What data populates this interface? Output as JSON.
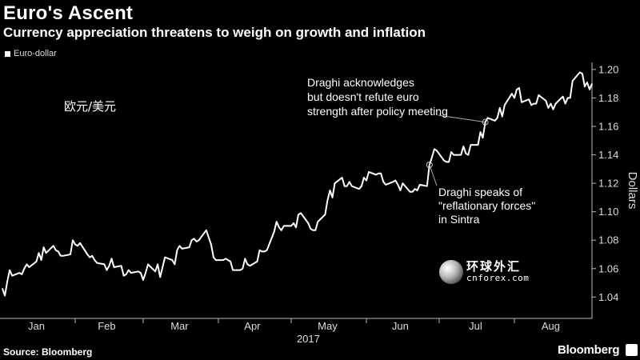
{
  "header": {
    "title": "Euro's Ascent",
    "subtitle": "Currency appreciation threatens to weigh on growth and inflation"
  },
  "overlay_text": "欧元/美元",
  "watermark": {
    "chinese": "环球外汇",
    "url": "cnforex.com"
  },
  "footer": {
    "source": "Source: Bloomberg",
    "brand": "Bloomberg"
  },
  "colors": {
    "background": "#000000",
    "line": "#ffffff",
    "axis": "#bbbbbb"
  },
  "chart_data": {
    "type": "line",
    "title": "Euro's Ascent",
    "subtitle": "Currency appreciation threatens to weigh on growth and inflation",
    "xlabel": "2017",
    "ylabel": "Dollars",
    "y_axis_position": "right",
    "ylim": [
      1.025,
      1.205
    ],
    "yticks": [
      1.04,
      1.06,
      1.08,
      1.1,
      1.12,
      1.14,
      1.16,
      1.18,
      1.2
    ],
    "ytick_labels": [
      "1.04",
      "1.06",
      "1.08",
      "1.10",
      "1.12",
      "1.14",
      "1.16",
      "1.18",
      "1.20"
    ],
    "xlim": [
      "2017-01-01",
      "2017-09-02"
    ],
    "month_labels": [
      {
        "label": "Jan",
        "date": "2017-01-16"
      },
      {
        "label": "Feb",
        "date": "2017-02-14"
      },
      {
        "label": "Mar",
        "date": "2017-03-16"
      },
      {
        "label": "Apr",
        "date": "2017-04-15"
      },
      {
        "label": "May",
        "date": "2017-05-16"
      },
      {
        "label": "Jun",
        "date": "2017-06-15"
      },
      {
        "label": "Jul",
        "date": "2017-07-16"
      },
      {
        "label": "Aug",
        "date": "2017-08-16"
      }
    ],
    "month_boundaries": [
      "2017-02-01",
      "2017-03-01",
      "2017-04-01",
      "2017-05-01",
      "2017-06-01",
      "2017-07-01",
      "2017-08-01"
    ],
    "grid": false,
    "legend": "top-left",
    "series": [
      {
        "name": "Euro-dollar",
        "points": [
          [
            "2017-01-02",
            1.046
          ],
          [
            "2017-01-03",
            1.041
          ],
          [
            "2017-01-04",
            1.051
          ],
          [
            "2017-01-05",
            1.059
          ],
          [
            "2017-01-06",
            1.055
          ],
          [
            "2017-01-09",
            1.057
          ],
          [
            "2017-01-10",
            1.056
          ],
          [
            "2017-01-11",
            1.06
          ],
          [
            "2017-01-12",
            1.063
          ],
          [
            "2017-01-13",
            1.061
          ],
          [
            "2017-01-16",
            1.065
          ],
          [
            "2017-01-17",
            1.071
          ],
          [
            "2017-01-18",
            1.066
          ],
          [
            "2017-01-19",
            1.075
          ],
          [
            "2017-01-20",
            1.071
          ],
          [
            "2017-01-23",
            1.076
          ],
          [
            "2017-01-24",
            1.073
          ],
          [
            "2017-01-25",
            1.072
          ],
          [
            "2017-01-26",
            1.069
          ],
          [
            "2017-01-27",
            1.069
          ],
          [
            "2017-01-30",
            1.07
          ],
          [
            "2017-01-31",
            1.08
          ],
          [
            "2017-02-01",
            1.077
          ],
          [
            "2017-02-02",
            1.076
          ],
          [
            "2017-02-03",
            1.078
          ],
          [
            "2017-02-06",
            1.07
          ],
          [
            "2017-02-07",
            1.068
          ],
          [
            "2017-02-08",
            1.069
          ],
          [
            "2017-02-09",
            1.066
          ],
          [
            "2017-02-10",
            1.064
          ],
          [
            "2017-02-13",
            1.063
          ],
          [
            "2017-02-14",
            1.059
          ],
          [
            "2017-02-15",
            1.062
          ],
          [
            "2017-02-16",
            1.067
          ],
          [
            "2017-02-17",
            1.061
          ],
          [
            "2017-02-20",
            1.062
          ],
          [
            "2017-02-21",
            1.055
          ],
          [
            "2017-02-22",
            1.056
          ],
          [
            "2017-02-23",
            1.059
          ],
          [
            "2017-02-24",
            1.057
          ],
          [
            "2017-02-27",
            1.058
          ],
          [
            "2017-02-28",
            1.057
          ],
          [
            "2017-03-01",
            1.052
          ],
          [
            "2017-03-02",
            1.057
          ],
          [
            "2017-03-03",
            1.063
          ],
          [
            "2017-03-06",
            1.058
          ],
          [
            "2017-03-07",
            1.063
          ],
          [
            "2017-03-08",
            1.054
          ],
          [
            "2017-03-09",
            1.061
          ],
          [
            "2017-03-10",
            1.068
          ],
          [
            "2017-03-13",
            1.066
          ],
          [
            "2017-03-14",
            1.063
          ],
          [
            "2017-03-15",
            1.073
          ],
          [
            "2017-03-16",
            1.076
          ],
          [
            "2017-03-17",
            1.074
          ],
          [
            "2017-03-20",
            1.075
          ],
          [
            "2017-03-21",
            1.08
          ],
          [
            "2017-03-22",
            1.081
          ],
          [
            "2017-03-23",
            1.079
          ],
          [
            "2017-03-24",
            1.08
          ],
          [
            "2017-03-27",
            1.087
          ],
          [
            "2017-03-28",
            1.082
          ],
          [
            "2017-03-29",
            1.077
          ],
          [
            "2017-03-30",
            1.068
          ],
          [
            "2017-03-31",
            1.066
          ],
          [
            "2017-04-03",
            1.066
          ],
          [
            "2017-04-04",
            1.067
          ],
          [
            "2017-04-05",
            1.066
          ],
          [
            "2017-04-06",
            1.065
          ],
          [
            "2017-04-07",
            1.059
          ],
          [
            "2017-04-10",
            1.059
          ],
          [
            "2017-04-11",
            1.06
          ],
          [
            "2017-04-12",
            1.067
          ],
          [
            "2017-04-13",
            1.063
          ],
          [
            "2017-04-14",
            1.062
          ],
          [
            "2017-04-17",
            1.065
          ],
          [
            "2017-04-18",
            1.073
          ],
          [
            "2017-04-19",
            1.072
          ],
          [
            "2017-04-20",
            1.072
          ],
          [
            "2017-04-21",
            1.073
          ],
          [
            "2017-04-24",
            1.086
          ],
          [
            "2017-04-25",
            1.093
          ],
          [
            "2017-04-26",
            1.089
          ],
          [
            "2017-04-27",
            1.087
          ],
          [
            "2017-04-28",
            1.09
          ],
          [
            "2017-05-01",
            1.09
          ],
          [
            "2017-05-02",
            1.092
          ],
          [
            "2017-05-03",
            1.089
          ],
          [
            "2017-05-04",
            1.098
          ],
          [
            "2017-05-05",
            1.099
          ],
          [
            "2017-05-08",
            1.092
          ],
          [
            "2017-05-09",
            1.088
          ],
          [
            "2017-05-10",
            1.087
          ],
          [
            "2017-05-11",
            1.087
          ],
          [
            "2017-05-12",
            1.093
          ],
          [
            "2017-05-15",
            1.098
          ],
          [
            "2017-05-16",
            1.108
          ],
          [
            "2017-05-17",
            1.115
          ],
          [
            "2017-05-18",
            1.11
          ],
          [
            "2017-05-19",
            1.12
          ],
          [
            "2017-05-22",
            1.124
          ],
          [
            "2017-05-23",
            1.118
          ],
          [
            "2017-05-24",
            1.118
          ],
          [
            "2017-05-25",
            1.121
          ],
          [
            "2017-05-26",
            1.118
          ],
          [
            "2017-05-29",
            1.116
          ],
          [
            "2017-05-30",
            1.118
          ],
          [
            "2017-05-31",
            1.124
          ],
          [
            "2017-06-01",
            1.122
          ],
          [
            "2017-06-02",
            1.128
          ],
          [
            "2017-06-05",
            1.126
          ],
          [
            "2017-06-06",
            1.127
          ],
          [
            "2017-06-07",
            1.127
          ],
          [
            "2017-06-08",
            1.121
          ],
          [
            "2017-06-09",
            1.119
          ],
          [
            "2017-06-12",
            1.121
          ],
          [
            "2017-06-13",
            1.122
          ],
          [
            "2017-06-14",
            1.119
          ],
          [
            "2017-06-15",
            1.115
          ],
          [
            "2017-06-16",
            1.12
          ],
          [
            "2017-06-19",
            1.114
          ],
          [
            "2017-06-20",
            1.114
          ],
          [
            "2017-06-21",
            1.116
          ],
          [
            "2017-06-22",
            1.115
          ],
          [
            "2017-06-23",
            1.119
          ],
          [
            "2017-06-26",
            1.118
          ],
          [
            "2017-06-27",
            1.133
          ],
          [
            "2017-06-28",
            1.138
          ],
          [
            "2017-06-29",
            1.144
          ],
          [
            "2017-06-30",
            1.143
          ],
          [
            "2017-07-03",
            1.136
          ],
          [
            "2017-07-04",
            1.135
          ],
          [
            "2017-07-05",
            1.135
          ],
          [
            "2017-07-06",
            1.142
          ],
          [
            "2017-07-07",
            1.14
          ],
          [
            "2017-07-10",
            1.14
          ],
          [
            "2017-07-11",
            1.146
          ],
          [
            "2017-07-12",
            1.141
          ],
          [
            "2017-07-13",
            1.14
          ],
          [
            "2017-07-14",
            1.147
          ],
          [
            "2017-07-17",
            1.147
          ],
          [
            "2017-07-18",
            1.156
          ],
          [
            "2017-07-19",
            1.152
          ],
          [
            "2017-07-20",
            1.163
          ],
          [
            "2017-07-21",
            1.166
          ],
          [
            "2017-07-24",
            1.164
          ],
          [
            "2017-07-25",
            1.166
          ],
          [
            "2017-07-26",
            1.173
          ],
          [
            "2017-07-27",
            1.167
          ],
          [
            "2017-07-28",
            1.175
          ],
          [
            "2017-07-31",
            1.183
          ],
          [
            "2017-08-01",
            1.18
          ],
          [
            "2017-08-02",
            1.186
          ],
          [
            "2017-08-03",
            1.187
          ],
          [
            "2017-08-04",
            1.177
          ],
          [
            "2017-08-07",
            1.179
          ],
          [
            "2017-08-08",
            1.175
          ],
          [
            "2017-08-09",
            1.176
          ],
          [
            "2017-08-10",
            1.176
          ],
          [
            "2017-08-11",
            1.182
          ],
          [
            "2017-08-14",
            1.178
          ],
          [
            "2017-08-15",
            1.173
          ],
          [
            "2017-08-16",
            1.176
          ],
          [
            "2017-08-17",
            1.172
          ],
          [
            "2017-08-18",
            1.176
          ],
          [
            "2017-08-21",
            1.181
          ],
          [
            "2017-08-22",
            1.176
          ],
          [
            "2017-08-23",
            1.18
          ],
          [
            "2017-08-24",
            1.18
          ],
          [
            "2017-08-25",
            1.192
          ],
          [
            "2017-08-28",
            1.198
          ],
          [
            "2017-08-29",
            1.197
          ],
          [
            "2017-08-30",
            1.188
          ],
          [
            "2017-08-31",
            1.191
          ],
          [
            "2017-09-01",
            1.186
          ],
          [
            "2017-09-02",
            1.19
          ]
        ]
      }
    ],
    "annotations": [
      {
        "text_lines": [
          "Draghi speaks of",
          "\"reflationary forces\"",
          "in Sintra"
        ],
        "date": "2017-06-27",
        "value": 1.133
      },
      {
        "text_lines": [
          "Draghi acknowledges",
          "but doesn't refute euro",
          "strength after policy meeting"
        ],
        "date": "2017-07-20",
        "value": 1.163
      }
    ]
  }
}
